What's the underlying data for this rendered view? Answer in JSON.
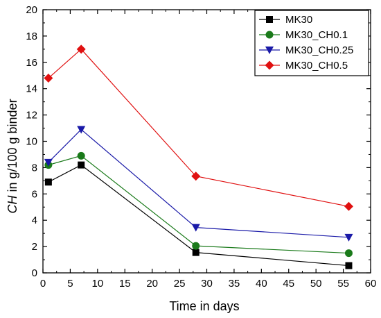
{
  "chart_data": {
    "type": "line",
    "xlabel": "Time in days",
    "ylabel_italic": "CH",
    "ylabel_rest": " in g/100 g binder",
    "xlim": [
      0,
      60
    ],
    "ylim": [
      0,
      20
    ],
    "xticks": [
      0,
      5,
      10,
      15,
      20,
      25,
      30,
      35,
      40,
      45,
      50,
      55,
      60
    ],
    "yticks": [
      0,
      2,
      4,
      6,
      8,
      10,
      12,
      14,
      16,
      18,
      20
    ],
    "grid": false,
    "legend_position": "top-right",
    "series": [
      {
        "name": "MK30",
        "color": "#000000",
        "marker": "square",
        "x": [
          1,
          7,
          28,
          56
        ],
        "y": [
          6.9,
          8.2,
          1.55,
          0.55
        ]
      },
      {
        "name": "MK30_CH0.1",
        "color": "#1a7a1a",
        "marker": "circle",
        "x": [
          1,
          7,
          28,
          56
        ],
        "y": [
          8.2,
          8.9,
          2.05,
          1.5
        ]
      },
      {
        "name": "MK30_CH0.25",
        "color": "#1a1aa8",
        "marker": "triangle-down",
        "x": [
          1,
          7,
          28,
          56
        ],
        "y": [
          8.4,
          10.9,
          3.45,
          2.7
        ]
      },
      {
        "name": "MK30_CH0.5",
        "color": "#e01010",
        "marker": "diamond",
        "x": [
          1,
          7,
          28,
          56
        ],
        "y": [
          14.8,
          17.0,
          7.35,
          5.05
        ]
      }
    ]
  }
}
